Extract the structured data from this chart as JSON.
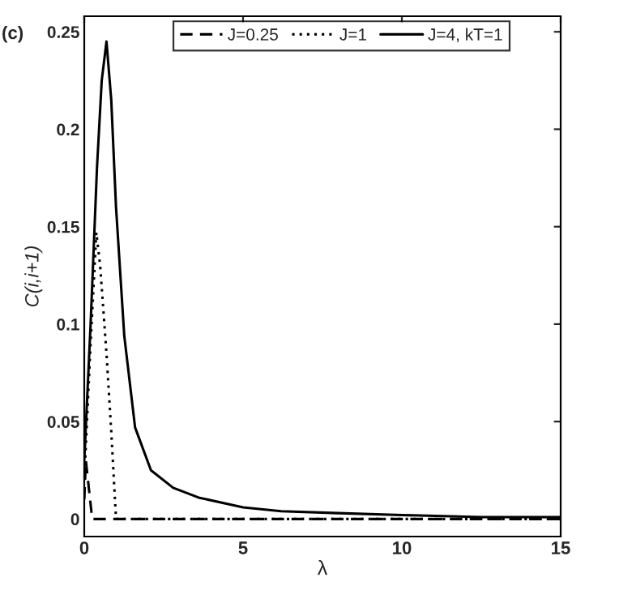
{
  "chart_data": {
    "type": "line",
    "xlabel": "λ",
    "ylabel": "C(i,i+1)",
    "annotations": [
      "(c)"
    ],
    "xlim": [
      0,
      15
    ],
    "ylim": [
      -0.009,
      0.258
    ],
    "xticks": [
      0,
      5,
      10,
      15
    ],
    "yticks": [
      0,
      {
        "value": 0.05,
        "label": "0.05"
      },
      {
        "value": 0.1,
        "label": "0.1"
      },
      {
        "value": 0.15,
        "label": "0.15"
      },
      {
        "value": 0.2,
        "label": "0.2"
      },
      {
        "value": 0.25,
        "label": "0.25"
      }
    ],
    "grid": false,
    "legend": "top",
    "marker": "none",
    "series": [
      {
        "name": "J=0.25",
        "color": "#000000",
        "line_style": "dashed",
        "x": [
          0,
          0.05,
          0.15,
          0.25,
          15
        ],
        "values": [
          0.01,
          0.03,
          0.015,
          0,
          0
        ]
      },
      {
        "name": "J=1",
        "color": "#000000",
        "line_style": "dotted",
        "x": [
          0,
          0.2,
          0.38,
          0.5,
          0.7,
          0.85,
          1.0,
          15
        ],
        "values": [
          0.02,
          0.09,
          0.147,
          0.13,
          0.085,
          0.045,
          0,
          0
        ]
      },
      {
        "name": "J=4, kT=1",
        "color": "#000000",
        "line_style": "solid",
        "x": [
          0,
          0.2,
          0.4,
          0.55,
          0.7,
          0.85,
          1.0,
          1.26,
          1.6,
          2.1,
          2.8,
          3.6,
          5,
          6.2,
          8,
          10,
          12.5,
          15
        ],
        "values": [
          0.03,
          0.1,
          0.18,
          0.225,
          0.245,
          0.215,
          0.16,
          0.094,
          0.047,
          0.025,
          0.016,
          0.011,
          0.006,
          0.004,
          0.003,
          0.002,
          0.001,
          0.001
        ]
      }
    ]
  }
}
